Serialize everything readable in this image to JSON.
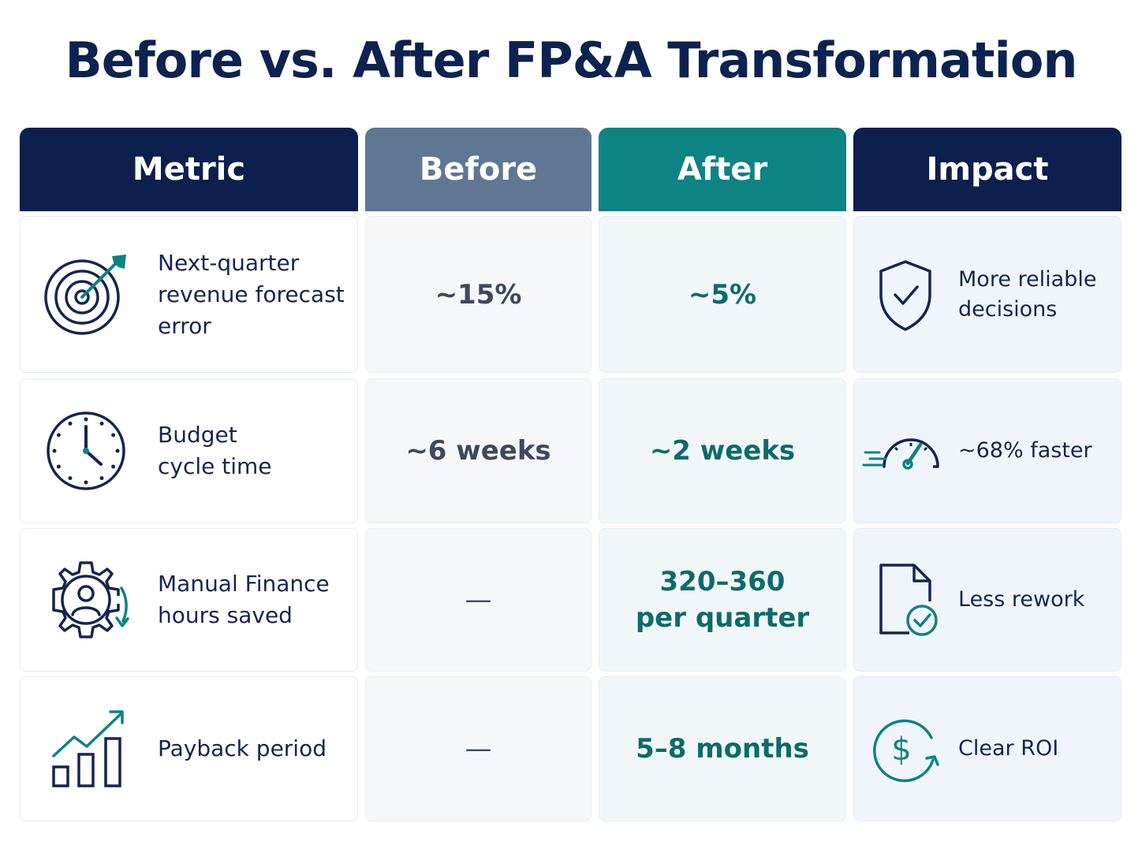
{
  "title": "Before vs. After FP&A Transformation",
  "headers": {
    "metric": "Metric",
    "before": "Before",
    "after": "After",
    "impact": "Impact"
  },
  "colors": {
    "navy": "#0c1f4d",
    "slate": "#5f7793",
    "teal": "#0d8383",
    "teal_text": "#0d6b6b"
  },
  "rows": [
    {
      "icon": "target-icon",
      "metric_line1": "Next-quarter",
      "metric_line2": "revenue forecast error",
      "before": "~15%",
      "after_line1": "~5%",
      "after_line2": "",
      "impact_icon": "shield-check-icon",
      "impact_line1": "More reliable",
      "impact_line2": "decisions"
    },
    {
      "icon": "clock-icon",
      "metric_line1": "Budget",
      "metric_line2": "cycle time",
      "before": "~6 weeks",
      "after_line1": "~2 weeks",
      "after_line2": "",
      "impact_icon": "speedometer-icon",
      "impact_line1": "~68% faster",
      "impact_line2": ""
    },
    {
      "icon": "gear-person-icon",
      "metric_line1": "Manual Finance",
      "metric_line2": "hours saved",
      "before": "—",
      "after_line1": "320–360",
      "after_line2": "per quarter",
      "impact_icon": "document-check-icon",
      "impact_line1": "Less rework",
      "impact_line2": ""
    },
    {
      "icon": "growth-chart-icon",
      "metric_line1": "Payback period",
      "metric_line2": "",
      "before": "—",
      "after_line1": "5–8 months",
      "after_line2": "",
      "impact_icon": "dollar-cycle-icon",
      "impact_line1": "Clear ROI",
      "impact_line2": ""
    }
  ]
}
